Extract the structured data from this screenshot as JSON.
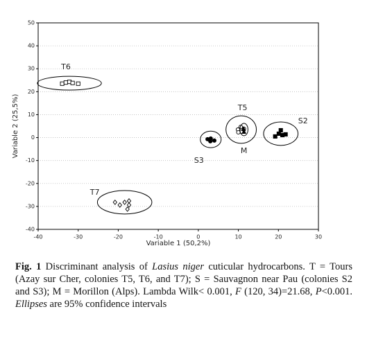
{
  "chart_data": {
    "type": "scatter",
    "xlabel": "Variable 1 (50,2%)",
    "ylabel": "Variable 2 (25,5%)",
    "xlim": [
      -40,
      30
    ],
    "ylim": [
      -40,
      50
    ],
    "xticks": [
      -40,
      -30,
      -20,
      -10,
      0,
      10,
      20,
      30
    ],
    "yticks": [
      -40,
      -30,
      -20,
      -10,
      0,
      10,
      20,
      30,
      40,
      50
    ],
    "grid": true,
    "series": [
      {
        "name": "T6",
        "marker": "open-square",
        "color": "#000000",
        "x": [
          -34,
          -33.1,
          -32.2,
          -31.4,
          -30
        ],
        "y": [
          23.5,
          24,
          24.3,
          23.8,
          23.5
        ],
        "ellipse": {
          "cx": -32.2,
          "cy": 23.7,
          "rx": 8,
          "ry": 3
        }
      },
      {
        "name": "T7",
        "marker": "open-diamond",
        "color": "#000000",
        "x": [
          -20.8,
          -19.6,
          -18.4,
          -17.3,
          -17.3,
          -17.7
        ],
        "y": [
          -28.2,
          -29.4,
          -28.2,
          -27.6,
          -29.4,
          -31.2
        ],
        "ellipse": {
          "cx": -18.4,
          "cy": -28.2,
          "rx": 6.8,
          "ry": 5.1
        }
      },
      {
        "name": "S3",
        "marker": "filled-circle",
        "color": "#000000",
        "x": [
          2.3,
          3.1,
          4,
          3
        ],
        "y": [
          -0.7,
          -0.4,
          -1.3,
          -1.6
        ],
        "ellipse": {
          "cx": 3.1,
          "cy": -0.8,
          "rx": 2.6,
          "ry": 3.6
        }
      },
      {
        "name": "T5",
        "marker": "open-circle",
        "color": "#000000",
        "x": [
          9.9,
          10.6,
          11.4,
          10.7,
          10
        ],
        "y": [
          3.5,
          4.7,
          3.8,
          2.6,
          2.3
        ],
        "ellipse": {
          "cx": 10.7,
          "cy": 3.5,
          "rx": 3.8,
          "ry": 6
        }
      },
      {
        "name": "M",
        "marker": "filled-triangle",
        "color": "#000000",
        "x": [
          11.3,
          11.4
        ],
        "y": [
          3.8,
          2.6
        ],
        "ellipse": {
          "cx": 11.4,
          "cy": 3.5,
          "rx": 1,
          "ry": 2.7
        }
      },
      {
        "name": "S2",
        "marker": "filled-square",
        "color": "#000000",
        "x": [
          19.2,
          20.1,
          21,
          21.8,
          20.6
        ],
        "y": [
          0.5,
          1.7,
          1.1,
          1.4,
          3.2
        ],
        "ellipse": {
          "cx": 20.6,
          "cy": 1.7,
          "rx": 4.3,
          "ry": 5.1
        }
      }
    ]
  },
  "caption": {
    "label": "Fig. 1",
    "parts": [
      " Discriminant analysis of ",
      "Lasius niger",
      " cuticular hydrocarbons. T = Tours (Azay sur Cher, colonies T5, T6, and T7); S = Sauvagnon near Pau (colonies S2 and S3); M = Morillon (Alps). Lambda Wilk< 0.001, ",
      "F",
      " (120, 34)=21.68, ",
      "P",
      "<0.001. ",
      "Ellipses",
      " are 95% confidence intervals"
    ]
  }
}
